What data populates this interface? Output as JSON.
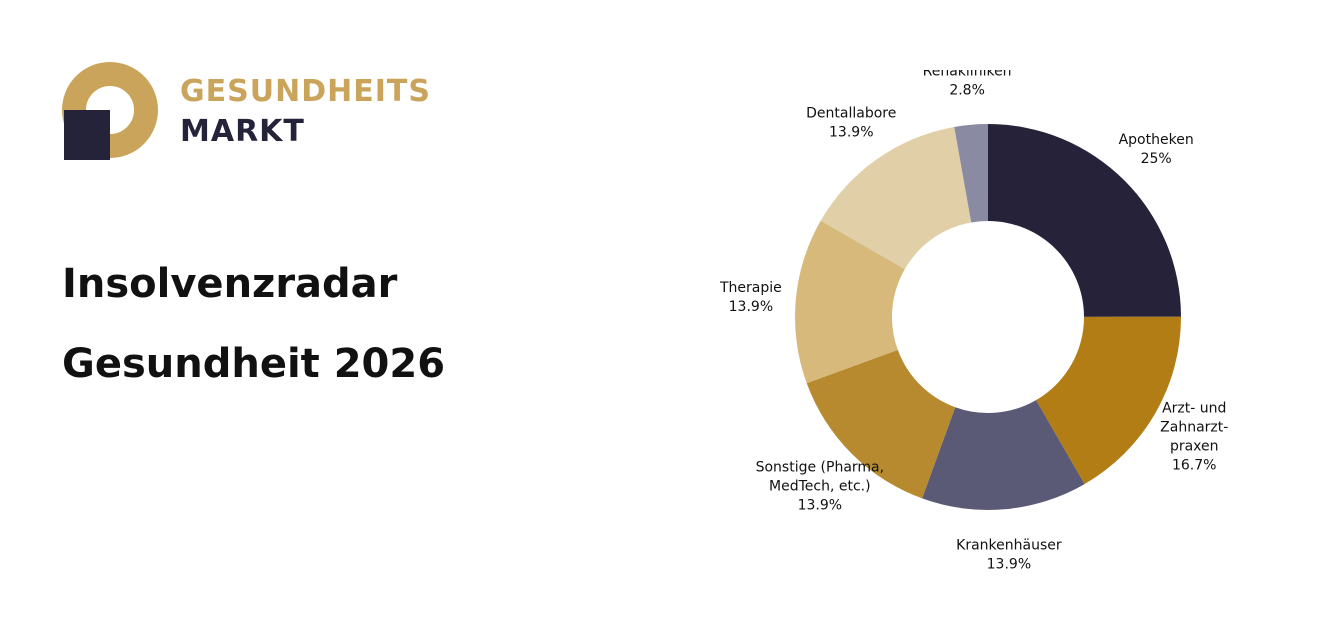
{
  "brand": {
    "line1": "GESUNDHEITS",
    "line2": "MARKT",
    "gold": "#C9A45A",
    "navy": "#252339"
  },
  "headline": {
    "line1": "Insolvenzradar",
    "line2": "Gesundheit 2026"
  },
  "chart_data": {
    "type": "pie",
    "donut": true,
    "start": "12 o'clock, clockwise",
    "legend": "none (labels beside slices)",
    "slices": [
      {
        "label_lines": [
          "Apotheken"
        ],
        "value": 25,
        "value_label": "25%",
        "color": "#262239"
      },
      {
        "label_lines": [
          "Arzt- und",
          "Zahnarzt-",
          "praxen"
        ],
        "value": 16.7,
        "value_label": "16.7%",
        "color": "#B27D14"
      },
      {
        "label_lines": [
          "Krankenhäuser"
        ],
        "value": 13.9,
        "value_label": "13.9%",
        "color": "#5A5A76"
      },
      {
        "label_lines": [
          "Sonstige (Pharma,",
          "MedTech, etc.)"
        ],
        "value": 13.9,
        "value_label": "13.9%",
        "color": "#B88A30"
      },
      {
        "label_lines": [
          "Therapie"
        ],
        "value": 13.9,
        "value_label": "13.9%",
        "color": "#D8B97C"
      },
      {
        "label_lines": [
          "Dentallabore"
        ],
        "value": 13.9,
        "value_label": "13.9%",
        "color": "#E1CFA7"
      },
      {
        "label_lines": [
          "Rehakliniken"
        ],
        "value": 2.8,
        "value_label": "2.8%",
        "color": "#8A8AA3"
      }
    ]
  }
}
